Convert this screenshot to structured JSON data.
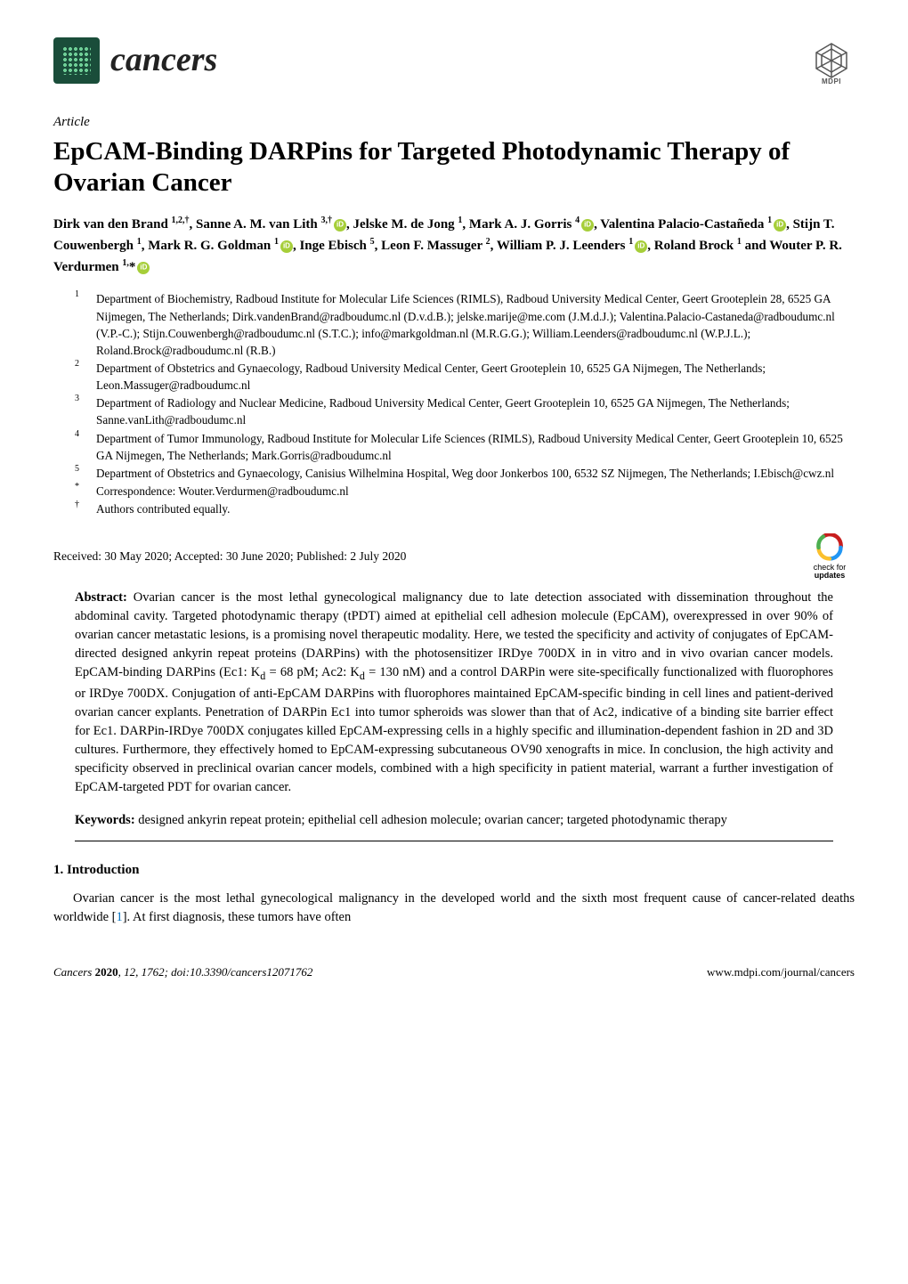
{
  "journal": {
    "name": "cancers"
  },
  "publisher": "MDPI",
  "article_type": "Article",
  "title": "EpCAM-Binding DARPins for Targeted Photodynamic Therapy of Ovarian Cancer",
  "authors_html": "Dirk van den Brand <sup>1,2,†</sup>, Sanne A. M. van Lith <sup>3,†</sup><span class='orcid'></span>, Jelske M. de Jong <sup>1</sup>, Mark A. J. Gorris <sup>4</sup><span class='orcid'></span>, Valentina Palacio-Castañeda <sup>1</sup><span class='orcid'></span>, Stijn T. Couwenbergh <sup>1</sup>, Mark R. G. Goldman <sup>1</sup><span class='orcid'></span>, Inge Ebisch <sup>5</sup>, Leon F. Massuger <sup>2</sup>, William P. J. Leenders <sup>1</sup><span class='orcid'></span>, Roland Brock <sup>1</sup> and Wouter P. R. Verdurmen <sup>1,</sup>*<span class='orcid'></span>",
  "affiliations": [
    {
      "num": "1",
      "text": "Department of Biochemistry, Radboud Institute for Molecular Life Sciences (RIMLS), Radboud University Medical Center, Geert Grooteplein 28, 6525 GA Nijmegen, The Netherlands; Dirk.vandenBrand@radboudumc.nl (D.v.d.B.); jelske.marije@me.com (J.M.d.J.); Valentina.Palacio-Castaneda@radboudumc.nl (V.P.-C.); Stijn.Couwenbergh@radboudumc.nl (S.T.C.); info@markgoldman.nl (M.R.G.G.); William.Leenders@radboudumc.nl (W.P.J.L.); Roland.Brock@radboudumc.nl (R.B.)"
    },
    {
      "num": "2",
      "text": "Department of Obstetrics and Gynaecology, Radboud University Medical Center, Geert Grooteplein 10, 6525 GA Nijmegen, The Netherlands; Leon.Massuger@radboudumc.nl"
    },
    {
      "num": "3",
      "text": "Department of Radiology and Nuclear Medicine, Radboud University Medical Center, Geert Grooteplein 10, 6525 GA Nijmegen, The Netherlands; Sanne.vanLith@radboudumc.nl"
    },
    {
      "num": "4",
      "text": "Department of Tumor Immunology, Radboud Institute for Molecular Life Sciences (RIMLS), Radboud University Medical Center, Geert Grooteplein 10, 6525 GA Nijmegen, The Netherlands; Mark.Gorris@radboudumc.nl"
    },
    {
      "num": "5",
      "text": "Department of Obstetrics and Gynaecology, Canisius Wilhelmina Hospital, Weg door Jonkerbos 100, 6532 SZ Nijmegen, The Netherlands; I.Ebisch@cwz.nl"
    },
    {
      "num": "*",
      "text": "Correspondence: Wouter.Verdurmen@radboudumc.nl"
    },
    {
      "num": "†",
      "text": "Authors contributed equally."
    }
  ],
  "pub_dates": "Received: 30 May 2020; Accepted: 30 June 2020; Published: 2 July 2020",
  "check_updates_label": "check for",
  "check_updates_bold": "updates",
  "abstract_label": "Abstract:",
  "abstract_text": " Ovarian cancer is the most lethal gynecological malignancy due to late detection associated with dissemination throughout the abdominal cavity. Targeted photodynamic therapy (tPDT) aimed at epithelial cell adhesion molecule (EpCAM), overexpressed in over 90% of ovarian cancer metastatic lesions, is a promising novel therapeutic modality. Here, we tested the specificity and activity of conjugates of EpCAM-directed designed ankyrin repeat proteins (DARPins) with the photosensitizer IRDye 700DX in in vitro and in vivo ovarian cancer models. EpCAM-binding DARPins (Ec1: K",
  "abstract_text2": " = 68 pM; Ac2: K",
  "abstract_text3": " = 130 nM) and a control DARPin were site-specifically functionalized with fluorophores or IRDye 700DX. Conjugation of anti-EpCAM DARPins with fluorophores maintained EpCAM-specific binding in cell lines and patient-derived ovarian cancer explants. Penetration of DARPin Ec1 into tumor spheroids was slower than that of Ac2, indicative of a binding site barrier effect for Ec1. DARPin-IRDye 700DX conjugates killed EpCAM-expressing cells in a highly specific and illumination-dependent fashion in 2D and 3D cultures. Furthermore, they effectively homed to EpCAM-expressing subcutaneous OV90 xenografts in mice. In conclusion, the high activity and specificity observed in preclinical ovarian cancer models, combined with a high specificity in patient material, warrant a further investigation of EpCAM-targeted PDT for ovarian cancer.",
  "kd_sub": "d",
  "keywords_label": "Keywords:",
  "keywords_text": " designed ankyrin repeat protein; epithelial cell adhesion molecule; ovarian cancer; targeted photodynamic therapy",
  "section1_head": "1. Introduction",
  "intro_text": "Ovarian cancer is the most lethal gynecological malignancy in the developed world and the sixth most frequent cause of cancer-related deaths worldwide [",
  "intro_ref": "1",
  "intro_text2": "]. At first diagnosis, these tumors have often",
  "footer": {
    "left_italic": "Cancers ",
    "left_bold": "2020",
    "left_rest": ", 12, 1762; doi:10.3390/cancers12071762",
    "right": "www.mdpi.com/journal/cancers"
  },
  "colors": {
    "journal_green": "#1a4d3a",
    "orcid_green": "#a6ce39",
    "ref_blue": "#0070c0",
    "updates_red": "#c81e1e",
    "updates_green": "#4caf50",
    "updates_blue": "#2196f3",
    "updates_yellow": "#fbc02d"
  }
}
